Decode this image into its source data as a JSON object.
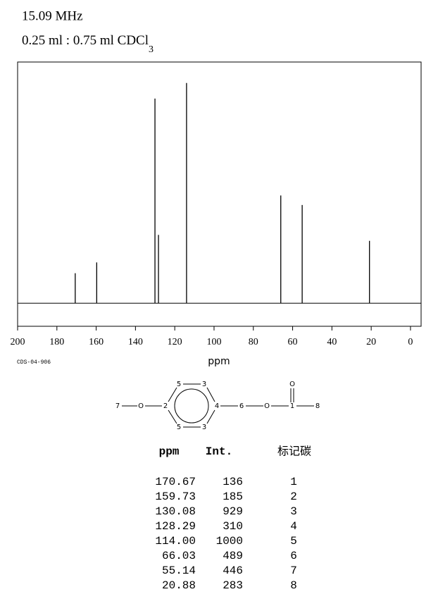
{
  "header": {
    "frequency": "15.09 MHz",
    "solvent": "0.25 ml : 0.75 ml CDCl",
    "solvent_subscript": "3"
  },
  "chart_data": {
    "type": "stem",
    "x_label": "ppm",
    "code": "CDS-04-906",
    "color": "#000000",
    "x": [
      170.67,
      159.73,
      130.08,
      128.29,
      114.0,
      66.03,
      55.14,
      20.88
    ],
    "values": [
      136,
      185,
      929,
      310,
      1000,
      489,
      446,
      283
    ],
    "xlim": [
      200,
      -5.4
    ],
    "xticks": [
      200,
      180,
      160,
      140,
      120,
      100,
      80,
      60,
      40,
      20,
      0
    ],
    "ylim": [
      -105,
      1095
    ]
  },
  "structure": {
    "nodes": [
      "7",
      "O",
      "2",
      "5",
      "3",
      "5",
      "3",
      "4",
      "6",
      "O",
      "1",
      "O",
      "8"
    ]
  },
  "table": {
    "headers": [
      "ppm",
      "Int.",
      "标记碳"
    ],
    "carbons": [
      "1",
      "2",
      "3",
      "4",
      "5",
      "6",
      "7",
      "8"
    ]
  }
}
